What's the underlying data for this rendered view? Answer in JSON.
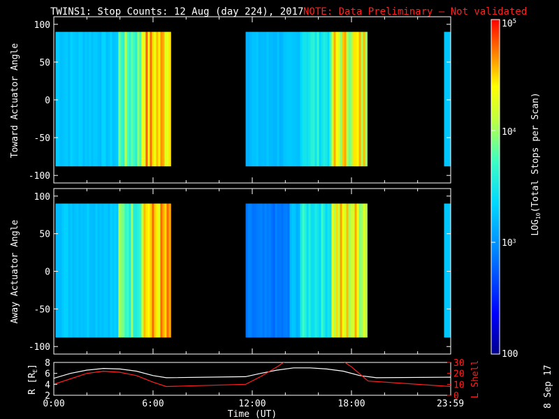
{
  "title": {
    "main": "TWINS1: Stop Counts: 12 Aug (day 224), 2017",
    "note": "NOTE: Data Preliminary – Not validated",
    "note_color": "#ff2020"
  },
  "datestamp": "8 Sep 17",
  "chart_data": [
    {
      "type": "heatmap",
      "panel": "top",
      "ylabel": "Toward Actuator Angle",
      "ylim": [
        -110,
        110
      ],
      "yticks": [
        "100",
        "50",
        "0",
        "-50",
        "-100"
      ],
      "xlim": [
        0,
        24
      ],
      "angle_range": [
        -88,
        90
      ],
      "data_blocks_hours": [
        [
          0.1,
          6.95
        ],
        [
          11.6,
          18.9
        ],
        [
          23.6,
          23.98
        ]
      ],
      "color_scale": "rainbow, log10 counts 100 to 1e5"
    },
    {
      "type": "heatmap",
      "panel": "middle",
      "ylabel": "Away Actuator Angle",
      "ylim": [
        -110,
        110
      ],
      "yticks": [
        "100",
        "50",
        "0",
        "-50",
        "-100"
      ],
      "xlim": [
        0,
        24
      ],
      "angle_range": [
        -88,
        90
      ],
      "data_blocks_hours": [
        [
          0.1,
          6.95
        ],
        [
          11.6,
          18.9
        ],
        [
          23.6,
          23.98
        ]
      ],
      "color_scale": "rainbow, log10 counts 100 to 1e5"
    },
    {
      "type": "line",
      "panel": "bottom",
      "xlabel": "Time (UT)",
      "xticks": [
        "0:00",
        "6:00",
        "12:00",
        "18:00",
        "23:59"
      ],
      "xlim": [
        0,
        24
      ],
      "left_axis": {
        "label": "R [R",
        "label_sub": "E",
        "label_end": "]",
        "ylim": [
          2,
          8
        ],
        "ticks": [
          "2",
          "4",
          "6",
          "8"
        ]
      },
      "right_axis": {
        "label": "L Shell",
        "ylim": [
          0,
          30
        ],
        "ticks": [
          "0",
          "10",
          "20",
          "30"
        ],
        "color": "#ff2020"
      },
      "series": [
        {
          "color": "#ffffff",
          "x": [
            0,
            1,
            2,
            3,
            4,
            5,
            6,
            6.8,
            11.6,
            12.5,
            13.5,
            14.5,
            15.5,
            16.5,
            17.5,
            18.5,
            19.5,
            24
          ],
          "y": [
            5.1,
            6.0,
            6.6,
            6.9,
            6.8,
            6.4,
            5.6,
            5.2,
            5.4,
            6.0,
            6.6,
            7.0,
            7.0,
            6.8,
            6.4,
            5.6,
            5.2,
            5.3
          ]
        },
        {
          "color": "#ff2020",
          "x": [
            0,
            1,
            2,
            3,
            4,
            5,
            6,
            6.8,
            11.6,
            12.5,
            13.5,
            14,
            17.5,
            18,
            19,
            24
          ],
          "y": [
            10,
            15,
            20,
            22,
            21,
            18,
            12,
            8,
            10,
            17,
            26,
            31,
            31,
            26,
            13,
            8
          ]
        }
      ]
    }
  ],
  "colorbar": {
    "label_prefix": "LOG",
    "label_sub": "10",
    "label_suffix": "(Total Stops per Scan)",
    "tick_labels": {
      "t1e5": "10",
      "t1e5_exp": "5",
      "t1e4": "10",
      "t1e4_exp": "4",
      "t1e3": "10",
      "t1e3_exp": "3",
      "t100": "100"
    },
    "range": [
      100,
      100000
    ]
  }
}
